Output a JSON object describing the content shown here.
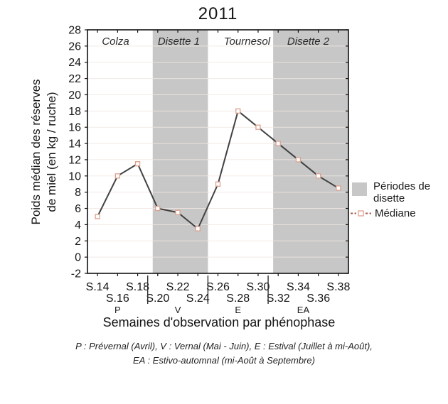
{
  "chart_data": {
    "type": "line",
    "title": "2011",
    "xlabel": "Semaines d'observation par phénophase",
    "ylabel_lines": [
      "Poids médian des réserves",
      "de miel (en kg / ruche)"
    ],
    "x_labels": [
      "S.14",
      "S.16",
      "S.18",
      "S.20",
      "S.22",
      "S.24",
      "S.26",
      "S.28",
      "S.30",
      "S.32",
      "S.34",
      "S.36",
      "S.38"
    ],
    "x_weeks": [
      14,
      16,
      18,
      20,
      22,
      24,
      26,
      28,
      30,
      32,
      34,
      36,
      38
    ],
    "series": [
      {
        "name": "Médiane",
        "values": [
          5,
          10,
          11.5,
          6,
          5.5,
          3.5,
          9,
          18,
          16,
          14,
          12,
          10,
          8.5
        ]
      }
    ],
    "ylim": [
      -2,
      28
    ],
    "ytick_step": 2,
    "grid": "faint-horizontal",
    "legend_position": "right",
    "bands": [
      {
        "label": "Disette 1",
        "from_week": 19.5,
        "to_week": 25
      },
      {
        "label": "Disette 2",
        "from_week": 31.5,
        "to_week": 39
      }
    ],
    "region_labels": [
      {
        "label": "Colza",
        "week": 15.8
      },
      {
        "label": "Disette 1",
        "week": 22.1
      },
      {
        "label": "Tournesol",
        "week": 28.9
      },
      {
        "label": "Disette 2",
        "week": 35
      }
    ],
    "phenophase_dividers_week": [
      19,
      25,
      31
    ],
    "phenophases": [
      {
        "label": "P",
        "week": 16
      },
      {
        "label": "V",
        "week": 22
      },
      {
        "label": "E",
        "week": 28
      },
      {
        "label": "EA",
        "week": 34.5
      }
    ],
    "colors": {
      "band": "#c7c7c7",
      "line": "#414141",
      "marker_fill": "#ffffff",
      "marker_edge": "#dba violet",
      "axis": "#121212",
      "grid": "#f2e7e2",
      "legend_dash": "#a85a4c"
    }
  },
  "legend": {
    "periodes_line1": "Périodes de",
    "periodes_line2": "disette",
    "mediane": "Médiane"
  },
  "footnote": {
    "line1": "P : Prévernal (Avril), V : Vernal (Mai - Juin), E : Estival (Juillet à mi-Août),",
    "line2": "EA : Estivo-automnal (mi-Août à Septembre)"
  }
}
